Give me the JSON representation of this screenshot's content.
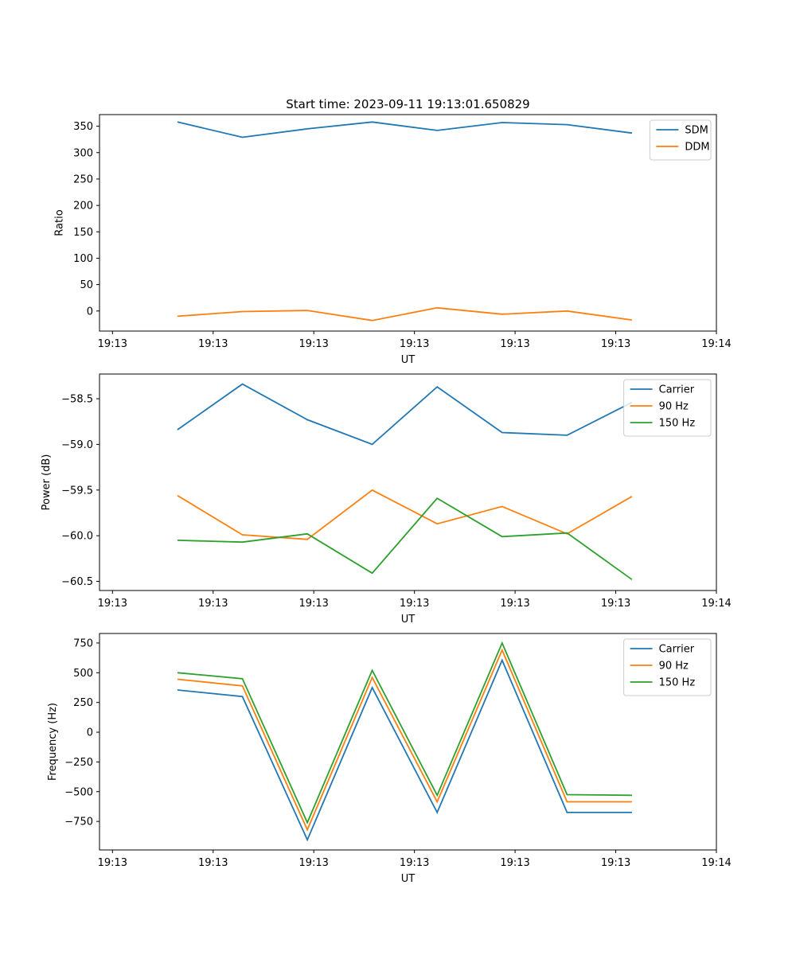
{
  "chart_data": [
    {
      "type": "line",
      "title": "Start time: 2023-09-11 19:13:01.650829",
      "xlabel": "UT",
      "ylabel": "Ratio",
      "x": [
        1,
        2,
        3,
        4,
        5,
        6,
        7,
        8
      ],
      "xlim": [
        -0.2,
        9.3
      ],
      "x_ticks": [
        0,
        1.55,
        3.1,
        4.65,
        6.2,
        7.75,
        9.3
      ],
      "x_tick_labels": [
        "19:13",
        "19:13",
        "19:13",
        "19:13",
        "19:13",
        "19:13",
        "19:14"
      ],
      "ylim": [
        -38,
        372
      ],
      "y_ticks": [
        0,
        50,
        100,
        150,
        200,
        250,
        300,
        350
      ],
      "y_tick_labels": [
        "0",
        "50",
        "100",
        "150",
        "200",
        "250",
        "300",
        "350"
      ],
      "legend_position": "top-right",
      "series": [
        {
          "name": "SDM",
          "color": "#1f77b4",
          "values": [
            358,
            329,
            345,
            358,
            342,
            357,
            353,
            337
          ]
        },
        {
          "name": "DDM",
          "color": "#ff7f0e",
          "values": [
            -10,
            -1,
            1,
            -18,
            6,
            -6,
            0,
            -17
          ]
        }
      ]
    },
    {
      "type": "line",
      "title": "",
      "xlabel": "UT",
      "ylabel": "Power (dB)",
      "x": [
        1,
        2,
        3,
        4,
        5,
        6,
        7,
        8
      ],
      "xlim": [
        -0.2,
        9.3
      ],
      "x_ticks": [
        0,
        1.55,
        3.1,
        4.65,
        6.2,
        7.75,
        9.3
      ],
      "x_tick_labels": [
        "19:13",
        "19:13",
        "19:13",
        "19:13",
        "19:13",
        "19:13",
        "19:14"
      ],
      "ylim": [
        -60.6,
        -58.23
      ],
      "y_ticks": [
        -58.5,
        -59.0,
        -59.5,
        -60.0,
        -60.5
      ],
      "y_tick_labels": [
        "−58.5",
        "−59.0",
        "−59.5",
        "−60.0",
        "−60.5"
      ],
      "legend_position": "top-right",
      "series": [
        {
          "name": "Carrier",
          "color": "#1f77b4",
          "values": [
            -58.84,
            -58.34,
            -58.73,
            -59.0,
            -58.37,
            -58.87,
            -58.9,
            -58.54
          ]
        },
        {
          "name": "90 Hz",
          "color": "#ff7f0e",
          "values": [
            -59.56,
            -59.99,
            -60.04,
            -59.5,
            -59.87,
            -59.68,
            -59.98,
            -59.57
          ]
        },
        {
          "name": "150 Hz",
          "color": "#2ca02c",
          "values": [
            -60.05,
            -60.07,
            -59.98,
            -60.41,
            -59.59,
            -60.01,
            -59.97,
            -60.48
          ]
        }
      ]
    },
    {
      "type": "line",
      "title": "",
      "xlabel": "UT",
      "ylabel": "Frequency (Hz)",
      "x": [
        1,
        2,
        3,
        4,
        5,
        6,
        7,
        8
      ],
      "xlim": [
        -0.2,
        9.3
      ],
      "x_ticks": [
        0,
        1.55,
        3.1,
        4.65,
        6.2,
        7.75,
        9.3
      ],
      "x_tick_labels": [
        "19:13",
        "19:13",
        "19:13",
        "19:13",
        "19:13",
        "19:13",
        "19:14"
      ],
      "ylim": [
        -990,
        830
      ],
      "y_ticks": [
        750,
        500,
        250,
        0,
        -250,
        -500,
        -750
      ],
      "y_tick_labels": [
        "750",
        "500",
        "250",
        "0",
        "−250",
        "−500",
        "−750"
      ],
      "legend_position": "top-right",
      "series": [
        {
          "name": "Carrier",
          "color": "#1f77b4",
          "values": [
            355,
            300,
            -905,
            375,
            -675,
            605,
            -675,
            -675
          ]
        },
        {
          "name": "90 Hz",
          "color": "#ff7f0e",
          "values": [
            445,
            390,
            -820,
            460,
            -585,
            690,
            -585,
            -585
          ]
        },
        {
          "name": "150 Hz",
          "color": "#2ca02c",
          "values": [
            500,
            450,
            -760,
            520,
            -530,
            750,
            -525,
            -530
          ]
        }
      ]
    }
  ]
}
